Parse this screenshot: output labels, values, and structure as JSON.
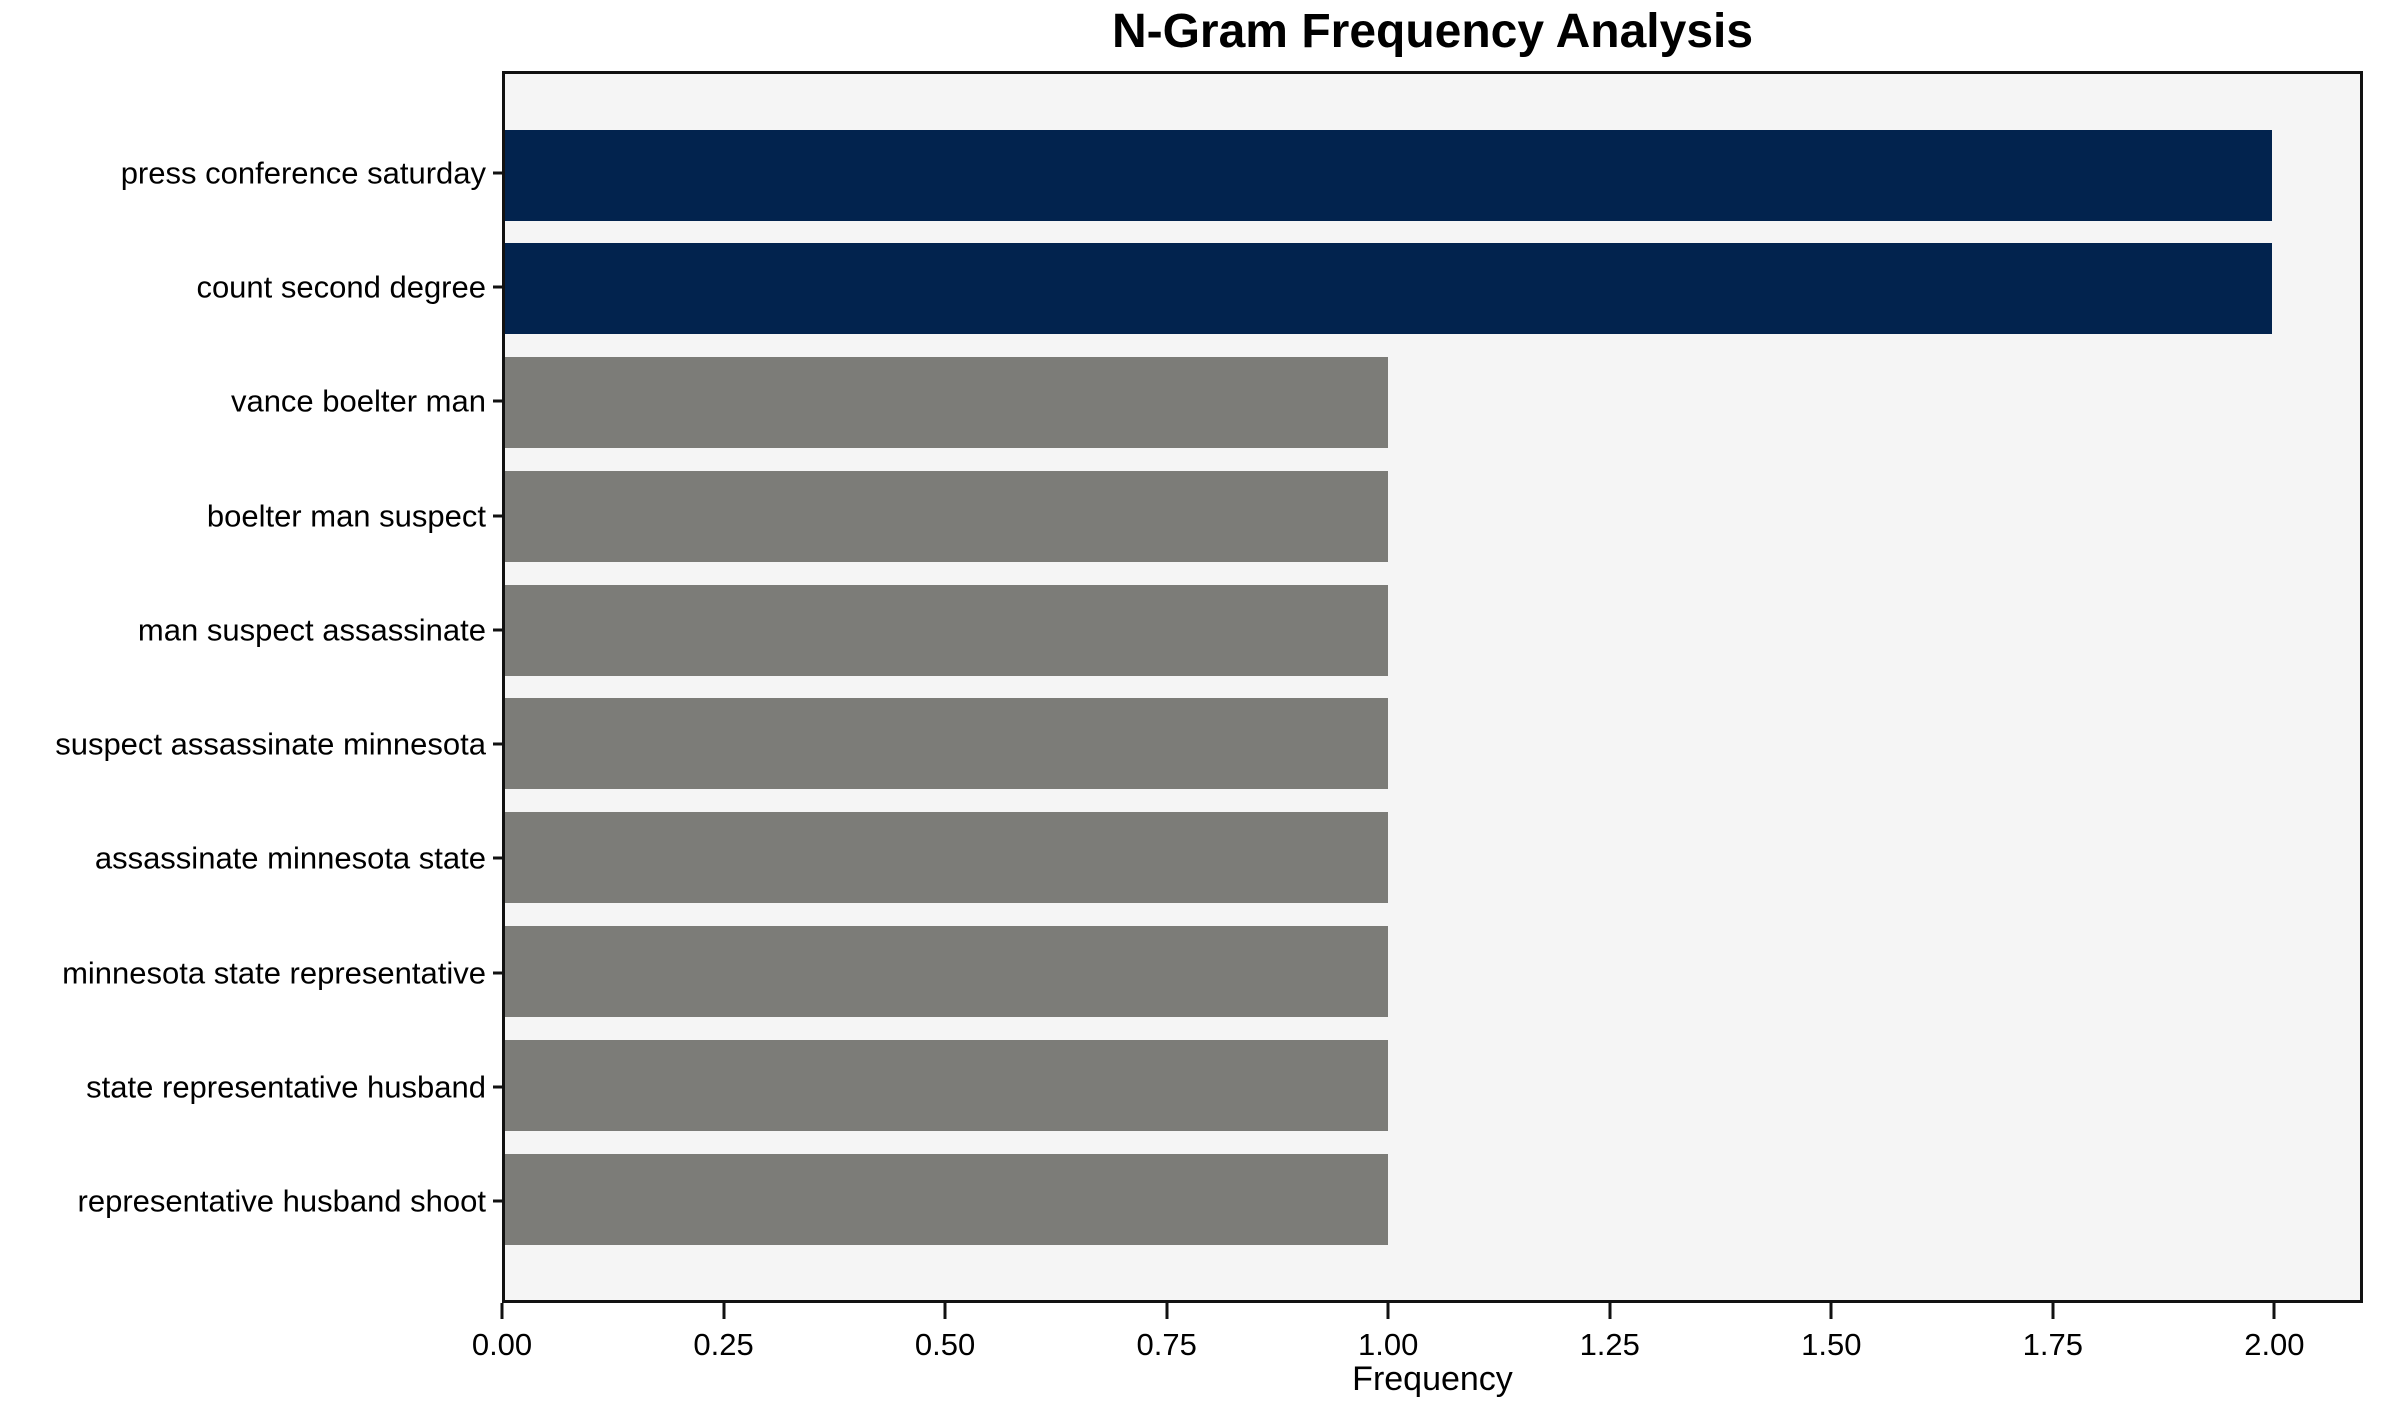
{
  "chart_data": {
    "type": "bar",
    "orientation": "horizontal",
    "title": "N-Gram Frequency Analysis",
    "xlabel": "Frequency",
    "ylabel": "",
    "categories": [
      "press conference saturday",
      "count second degree",
      "vance boelter man",
      "boelter man suspect",
      "man suspect assassinate",
      "suspect assassinate minnesota",
      "assassinate minnesota state",
      "minnesota state representative",
      "state representative husband",
      "representative husband shoot"
    ],
    "values": [
      2,
      2,
      1,
      1,
      1,
      1,
      1,
      1,
      1,
      1
    ],
    "bar_colors": [
      "#02234e",
      "#02234e",
      "#7c7c78",
      "#7c7c78",
      "#7c7c78",
      "#7c7c78",
      "#7c7c78",
      "#7c7c78",
      "#7c7c78",
      "#7c7c78"
    ],
    "highlight_color": "#02234e",
    "default_color": "#7c7c78",
    "xlim": [
      0,
      2.1
    ],
    "x_tick_values": [
      0,
      0.25,
      0.5,
      0.75,
      1.0,
      1.25,
      1.5,
      1.75,
      2.0
    ],
    "x_tick_labels": [
      "0.00",
      "0.25",
      "0.50",
      "0.75",
      "1.00",
      "1.25",
      "1.50",
      "1.75",
      "2.00"
    ],
    "grid": false,
    "legend": false,
    "bar_height_fraction": 0.8,
    "plot_background": "#f5f5f5",
    "figure_background": "#ffffff",
    "spine_color": "#111111",
    "text_color": "#000000"
  }
}
